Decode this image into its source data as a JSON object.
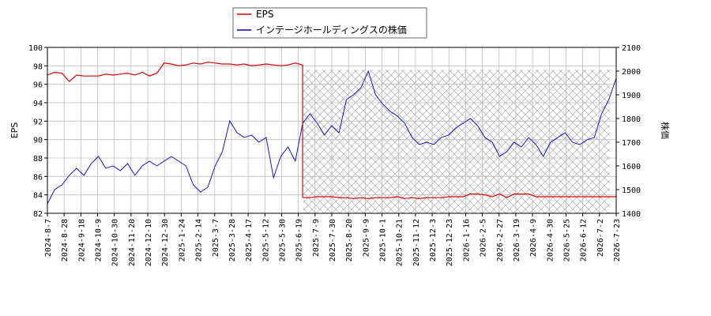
{
  "chart_data": {
    "type": "line",
    "legend_position": "top-center",
    "grid": true,
    "hatched_region": {
      "from": "2025-08-04",
      "to": "2026-07-31"
    },
    "x_tick_labels": [
      "2024-8-7",
      "2024-8-28",
      "2024-9-18",
      "2024-10-9",
      "2024-10-30",
      "2024-11-20",
      "2024-12-10",
      "2024-12-30",
      "2025-1-24",
      "2025-2-14",
      "2025-3-7",
      "2025-3-28",
      "2025-4-17",
      "2025-5-12",
      "2025-5-30",
      "2025-6-19",
      "2025-7-9",
      "2025-7-30",
      "2025-8-20",
      "2025-9-9",
      "2025-10-1",
      "2025-10-21",
      "2025-11-12",
      "2025-12-3",
      "2025-12-23",
      "2026-1-16",
      "2026-2-5",
      "2026-2-27",
      "2026-3-19",
      "2026-4-9",
      "2026-4-30",
      "2026-5-25",
      "2026-6-12",
      "2026-7-2",
      "2026-7-23"
    ],
    "left_axis": {
      "label": "EPS",
      "min": 82,
      "max": 100,
      "ticks": [
        82,
        84,
        86,
        88,
        90,
        92,
        94,
        96,
        98,
        100
      ]
    },
    "right_axis": {
      "label": "株価",
      "min": 1400,
      "max": 2100,
      "ticks": [
        1400,
        1500,
        1600,
        1700,
        1800,
        1900,
        2000,
        2100
      ]
    },
    "series": [
      {
        "name": "EPS",
        "axis": "left",
        "color": "#dd0000",
        "x": [
          0,
          1,
          2,
          3,
          4,
          5,
          6,
          7,
          8,
          9,
          10,
          11,
          12,
          13,
          14,
          15,
          16,
          17,
          18,
          19,
          20,
          21,
          22,
          23,
          24,
          25,
          26,
          27,
          28,
          29,
          30,
          31,
          32,
          33,
          34,
          35
        ],
        "y": [
          97.0,
          97.3,
          97.2,
          96.3,
          97.0,
          96.9,
          96.9,
          96.9,
          97.1,
          97.0,
          97.1,
          97.2,
          97.0,
          97.3,
          96.9,
          97.2,
          98.3,
          98.2,
          98.0,
          98.1,
          98.3,
          98.2,
          98.4,
          98.3,
          98.2,
          98.2,
          98.1,
          98.2,
          98.0,
          98.1,
          98.2,
          98.1,
          98.0,
          98.1,
          98.3,
          98.1
        ]
      },
      {
        "name": "EPS",
        "axis": "left",
        "color": "#dd0000",
        "x": [
          35,
          36,
          37,
          38,
          39,
          40,
          41,
          42,
          43,
          44,
          45,
          46,
          47,
          48,
          49,
          50,
          51,
          52,
          53,
          54,
          55,
          56,
          57,
          58,
          59,
          60,
          61,
          62,
          63,
          64,
          65,
          66,
          67,
          68,
          69,
          70,
          71,
          72,
          73,
          74,
          75,
          76,
          77,
          78
        ],
        "y": [
          83.7,
          83.7,
          83.8,
          83.8,
          83.8,
          83.7,
          83.7,
          83.6,
          83.7,
          83.6,
          83.7,
          83.7,
          83.7,
          83.8,
          83.6,
          83.7,
          83.6,
          83.7,
          83.7,
          83.7,
          83.8,
          83.8,
          83.8,
          84.1,
          84.1,
          84.0,
          83.8,
          84.1,
          83.7,
          84.1,
          84.1,
          84.1,
          83.8,
          83.8,
          83.8,
          83.8,
          83.8,
          83.8,
          83.8,
          83.8,
          83.8,
          83.8,
          83.8,
          83.8
        ]
      },
      {
        "name": "インテージホールディングスの株価",
        "axis": "right",
        "color": "#0000cc",
        "x": [
          0,
          1,
          2,
          3,
          4,
          5,
          6,
          7,
          8,
          9,
          10,
          11,
          12,
          13,
          14,
          15,
          16,
          17,
          18,
          19,
          20,
          21,
          22,
          23,
          24,
          25,
          26,
          27,
          28,
          29,
          30,
          31,
          32,
          33,
          34,
          35,
          36,
          37,
          38,
          39,
          40,
          41,
          42,
          43,
          44,
          45,
          46,
          47,
          48,
          49,
          50,
          51,
          52,
          53,
          54,
          55,
          56,
          57,
          58,
          59,
          60,
          61,
          62,
          63,
          64,
          65,
          66,
          67,
          68,
          69,
          70,
          71,
          72,
          73,
          74,
          75,
          76,
          77,
          78
        ],
        "y": [
          1440,
          1500,
          1520,
          1560,
          1590,
          1560,
          1610,
          1640,
          1590,
          1600,
          1580,
          1610,
          1560,
          1600,
          1620,
          1600,
          1620,
          1640,
          1620,
          1600,
          1520,
          1490,
          1510,
          1600,
          1660,
          1790,
          1740,
          1720,
          1730,
          1700,
          1720,
          1550,
          1640,
          1680,
          1620,
          1780,
          1820,
          1780,
          1730,
          1770,
          1740,
          1880,
          1900,
          1930,
          2000,
          1900,
          1860,
          1830,
          1810,
          1780,
          1720,
          1690,
          1700,
          1690,
          1720,
          1730,
          1760,
          1780,
          1800,
          1770,
          1720,
          1700,
          1640,
          1660,
          1700,
          1680,
          1720,
          1690,
          1640,
          1700,
          1720,
          1740,
          1700,
          1690,
          1710,
          1720,
          1820,
          1880,
          1970
        ]
      }
    ]
  }
}
